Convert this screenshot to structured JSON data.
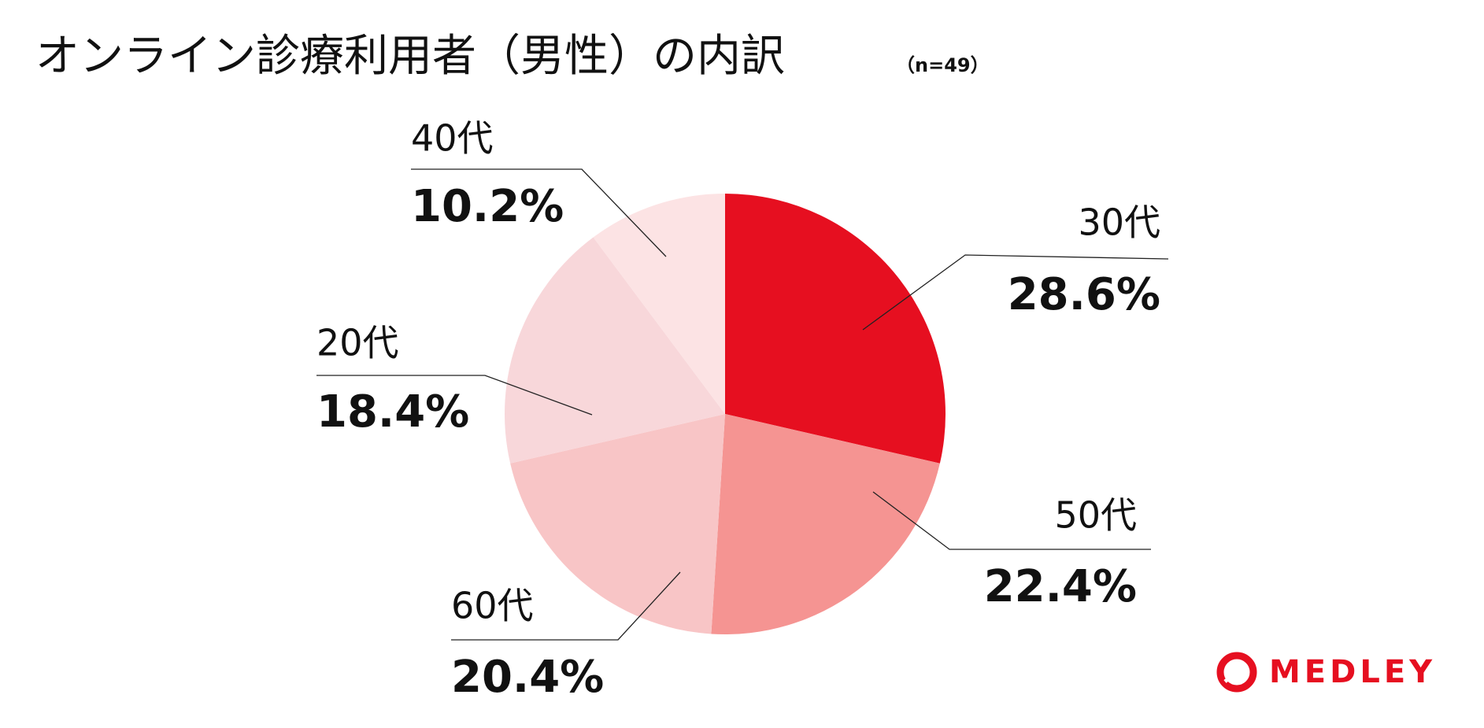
{
  "chart_data": {
    "type": "pie",
    "title": "オンライン診療利用者（男性）の内訳",
    "subtitle": "（n=49）",
    "categories": [
      "30代",
      "50代",
      "60代",
      "20代",
      "40代"
    ],
    "values": [
      28.6,
      22.4,
      20.4,
      18.4,
      10.2
    ],
    "value_labels": [
      "28.6%",
      "22.4%",
      "20.4%",
      "18.4%",
      "10.2%"
    ],
    "colors": [
      "#e60f20",
      "#f59492",
      "#f8c5c6",
      "#f8d7da",
      "#fce3e4"
    ]
  },
  "brand": "MEDLEY"
}
